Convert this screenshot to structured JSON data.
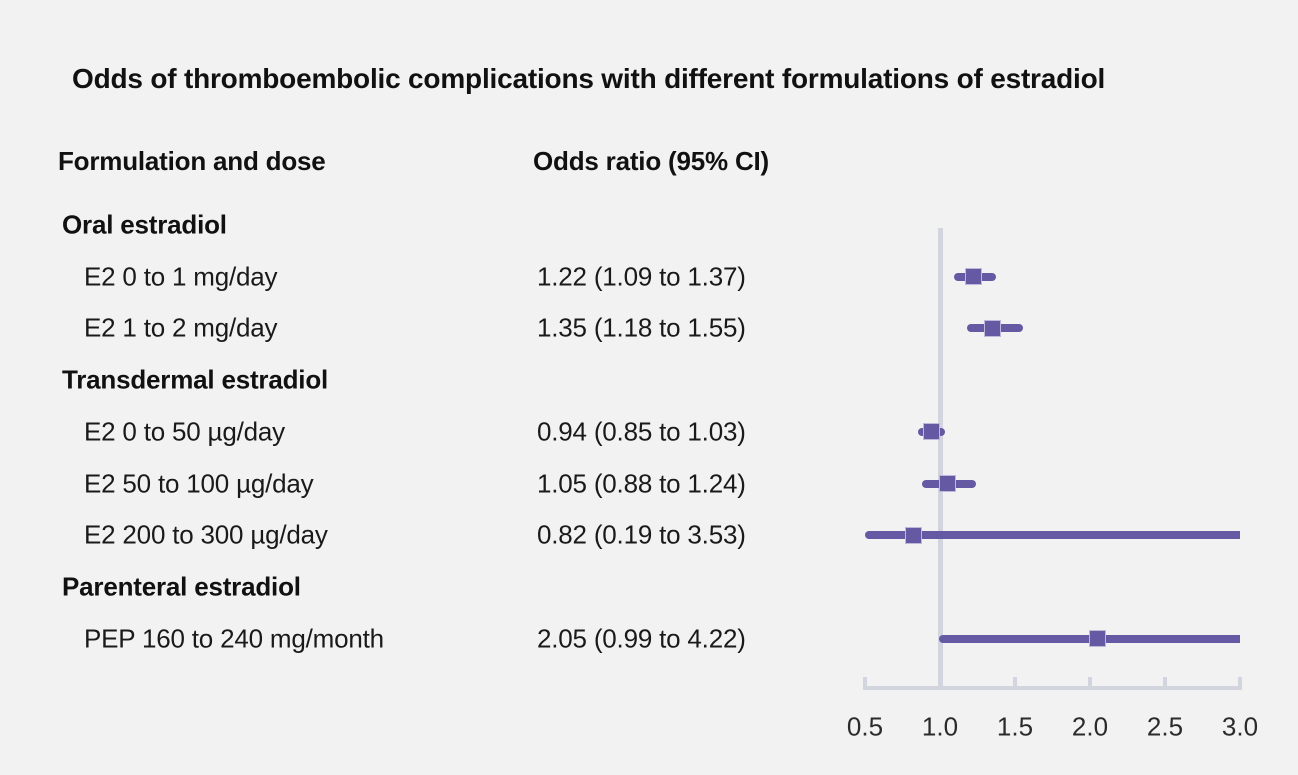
{
  "chart_data": {
    "type": "forest",
    "title": "Odds of thromboembolic complications with different formulations of estradiol",
    "columns": {
      "formulation": "Formulation and dose",
      "odds_ratio": "Odds ratio (95% CI)"
    },
    "rows": [
      {
        "kind": "section",
        "label": "Oral estradiol"
      },
      {
        "kind": "item",
        "label": "E2 0 to 1 mg/day",
        "value_text": "1.22 (1.09 to 1.37)",
        "estimate": 1.22,
        "ci_low": 1.09,
        "ci_high": 1.37
      },
      {
        "kind": "item",
        "label": "E2 1 to 2 mg/day",
        "value_text": "1.35 (1.18 to 1.55)",
        "estimate": 1.35,
        "ci_low": 1.18,
        "ci_high": 1.55
      },
      {
        "kind": "section",
        "label": "Transdermal estradiol"
      },
      {
        "kind": "item",
        "label": "E2 0 to 50 µg/day",
        "value_text": "0.94 (0.85 to 1.03)",
        "estimate": 0.94,
        "ci_low": 0.85,
        "ci_high": 1.03
      },
      {
        "kind": "item",
        "label": "E2 50 to 100 µg/day",
        "value_text": "1.05 (0.88 to 1.24)",
        "estimate": 1.05,
        "ci_low": 0.88,
        "ci_high": 1.24
      },
      {
        "kind": "item",
        "label": "E2 200 to 300 µg/day",
        "value_text": "0.82 (0.19 to 3.53)",
        "estimate": 0.82,
        "ci_low": 0.19,
        "ci_high": 3.53
      },
      {
        "kind": "section",
        "label": "Parenteral estradiol"
      },
      {
        "kind": "item",
        "label": "PEP 160 to 240 mg/month",
        "value_text": "2.05 (0.99 to 4.22)",
        "estimate": 2.05,
        "ci_low": 0.99,
        "ci_high": 4.22
      }
    ],
    "axis": {
      "min": 0.5,
      "max": 3.0,
      "ticks": [
        "0.5",
        "1.0",
        "1.5",
        "2.0",
        "2.5",
        "3.0"
      ],
      "reference_line": 1.0
    },
    "legend_position": "none",
    "grid": false,
    "colors": {
      "marker": "#6659a4",
      "marker_border": "#c0b8db",
      "axis": "#d2d5dd",
      "background": "#f2f2f2",
      "text": "#1a1a1a"
    }
  }
}
